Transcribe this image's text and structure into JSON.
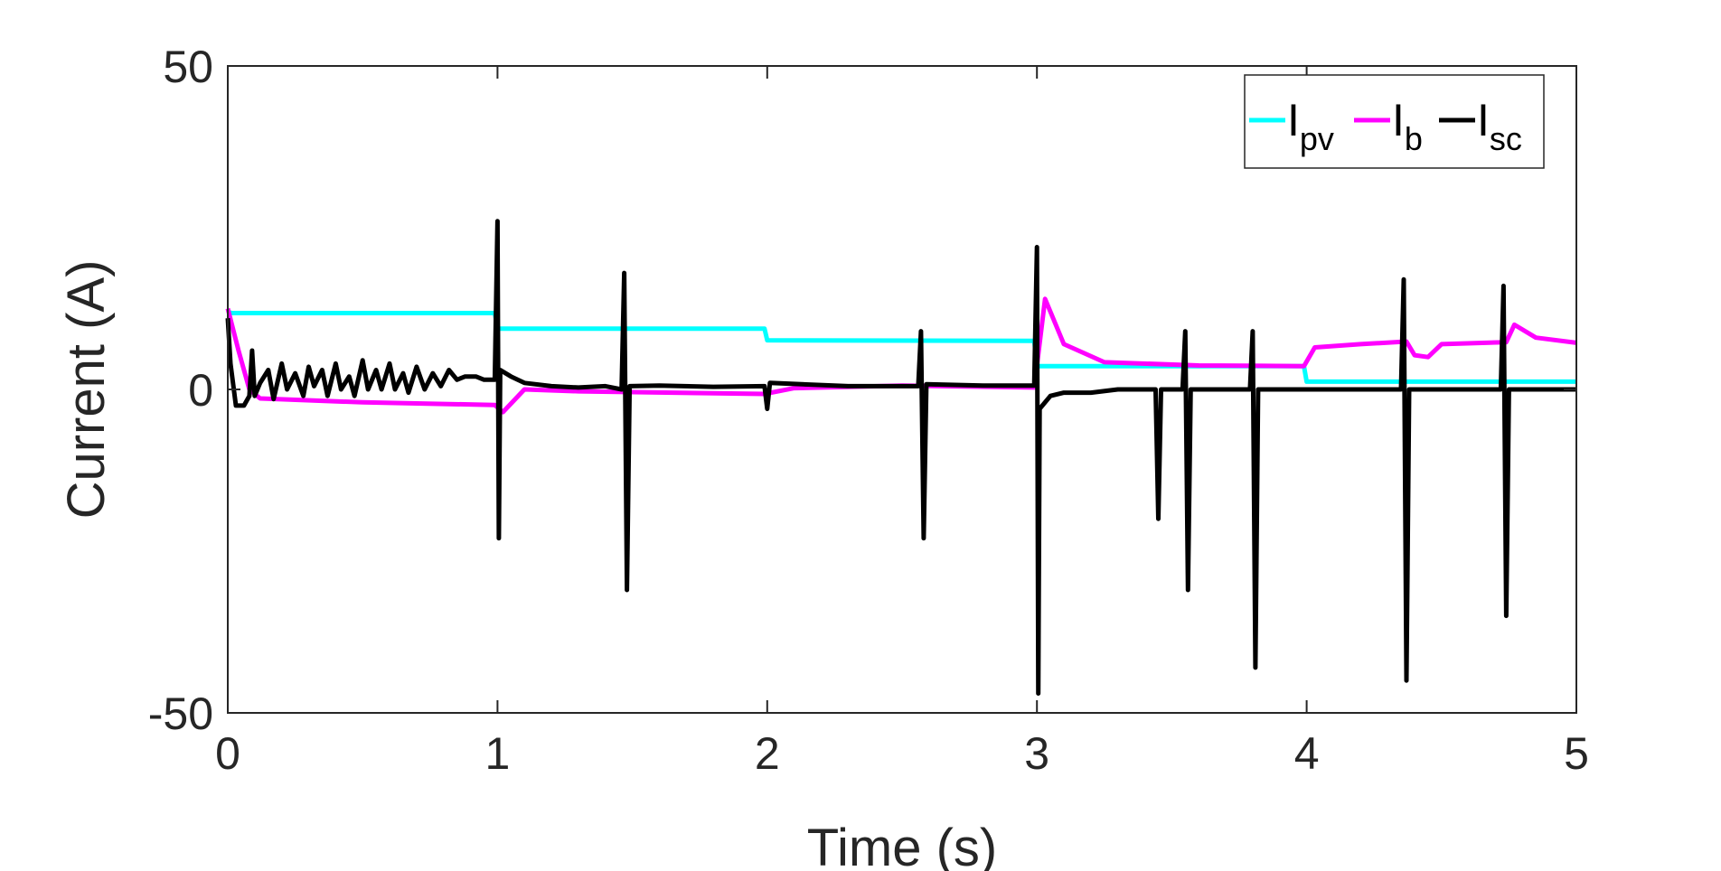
{
  "chart_data": {
    "type": "line",
    "title": "",
    "xlabel": "Time (s)",
    "ylabel": "Current (A)",
    "xlim": [
      0,
      5
    ],
    "ylim": [
      -50,
      50
    ],
    "xticks": [
      0,
      1,
      2,
      3,
      4,
      5
    ],
    "yticks": [
      -50,
      0,
      50
    ],
    "xtick_labels": [
      "0",
      "1",
      "2",
      "3",
      "4",
      "5"
    ],
    "ytick_labels": [
      "-50",
      "0",
      "50"
    ],
    "grid": false,
    "legend_position": "top-right",
    "series": [
      {
        "name": "I",
        "subscript": "pv",
        "color": "#00FFFF",
        "points": [
          [
            0,
            12
          ],
          [
            0.015,
            11.8
          ],
          [
            0.99,
            11.8
          ],
          [
            1.0,
            9.4
          ],
          [
            1.99,
            9.4
          ],
          [
            2.0,
            7.6
          ],
          [
            2.99,
            7.5
          ],
          [
            3.0,
            3.6
          ],
          [
            3.99,
            3.6
          ],
          [
            4.0,
            1.2
          ],
          [
            5.0,
            1.2
          ]
        ]
      },
      {
        "name": "I",
        "subscript": "b",
        "color": "#FF00FF",
        "points": [
          [
            0,
            12.5
          ],
          [
            0.04,
            6
          ],
          [
            0.08,
            0
          ],
          [
            0.12,
            -1.4
          ],
          [
            0.5,
            -2
          ],
          [
            0.99,
            -2.4
          ],
          [
            1.02,
            -3.5
          ],
          [
            1.1,
            0
          ],
          [
            1.3,
            -0.3
          ],
          [
            1.99,
            -0.7
          ],
          [
            2.1,
            0.2
          ],
          [
            2.5,
            0.6
          ],
          [
            2.99,
            0.3
          ],
          [
            3.03,
            14
          ],
          [
            3.1,
            7
          ],
          [
            3.25,
            4.2
          ],
          [
            3.6,
            3.7
          ],
          [
            3.99,
            3.6
          ],
          [
            4.03,
            6.5
          ],
          [
            4.2,
            7
          ],
          [
            4.37,
            7.4
          ],
          [
            4.4,
            5.3
          ],
          [
            4.45,
            5
          ],
          [
            4.5,
            7
          ],
          [
            4.74,
            7.3
          ],
          [
            4.77,
            10
          ],
          [
            4.85,
            8
          ],
          [
            5.0,
            7.2
          ]
        ]
      },
      {
        "name": "I",
        "subscript": "sc",
        "color": "#000000",
        "points": [
          [
            0,
            11
          ],
          [
            0.01,
            4
          ],
          [
            0.03,
            -2.5
          ],
          [
            0.06,
            -2.5
          ],
          [
            0.08,
            -1
          ],
          [
            0.09,
            6
          ],
          [
            0.1,
            -1
          ],
          [
            0.12,
            1
          ],
          [
            0.15,
            3
          ],
          [
            0.17,
            -1.5
          ],
          [
            0.2,
            4
          ],
          [
            0.22,
            0
          ],
          [
            0.25,
            2.5
          ],
          [
            0.28,
            -1
          ],
          [
            0.3,
            3.5
          ],
          [
            0.32,
            0.5
          ],
          [
            0.35,
            3
          ],
          [
            0.37,
            -1
          ],
          [
            0.4,
            4
          ],
          [
            0.42,
            0
          ],
          [
            0.45,
            2
          ],
          [
            0.47,
            -1
          ],
          [
            0.5,
            4.5
          ],
          [
            0.52,
            0
          ],
          [
            0.55,
            3
          ],
          [
            0.57,
            0
          ],
          [
            0.6,
            4
          ],
          [
            0.62,
            0
          ],
          [
            0.65,
            2.5
          ],
          [
            0.67,
            -0.5
          ],
          [
            0.7,
            3.5
          ],
          [
            0.73,
            0
          ],
          [
            0.76,
            2.5
          ],
          [
            0.79,
            0.5
          ],
          [
            0.82,
            3
          ],
          [
            0.85,
            1.5
          ],
          [
            0.88,
            2
          ],
          [
            0.92,
            2
          ],
          [
            0.95,
            1.5
          ],
          [
            0.99,
            1.5
          ],
          [
            1.0,
            26
          ],
          [
            1.005,
            -23
          ],
          [
            1.01,
            3
          ],
          [
            1.05,
            2
          ],
          [
            1.1,
            1
          ],
          [
            1.2,
            0.5
          ],
          [
            1.3,
            0.3
          ],
          [
            1.4,
            0.5
          ],
          [
            1.46,
            0
          ],
          [
            1.47,
            18
          ],
          [
            1.48,
            -31
          ],
          [
            1.49,
            0.5
          ],
          [
            1.6,
            0.6
          ],
          [
            1.8,
            0.4
          ],
          [
            1.99,
            0.5
          ],
          [
            2.0,
            -3
          ],
          [
            2.01,
            1
          ],
          [
            2.3,
            0.5
          ],
          [
            2.56,
            0.5
          ],
          [
            2.57,
            9
          ],
          [
            2.58,
            -23
          ],
          [
            2.59,
            0.8
          ],
          [
            2.8,
            0.6
          ],
          [
            2.99,
            0.6
          ],
          [
            3.0,
            22
          ],
          [
            3.005,
            -47
          ],
          [
            3.01,
            -3
          ],
          [
            3.05,
            -1
          ],
          [
            3.1,
            -0.5
          ],
          [
            3.2,
            -0.5
          ],
          [
            3.3,
            0
          ],
          [
            3.44,
            0
          ],
          [
            3.45,
            -20
          ],
          [
            3.46,
            0
          ],
          [
            3.54,
            0
          ],
          [
            3.55,
            9
          ],
          [
            3.56,
            -31
          ],
          [
            3.57,
            0
          ],
          [
            3.7,
            0
          ],
          [
            3.79,
            0
          ],
          [
            3.8,
            9
          ],
          [
            3.81,
            -43
          ],
          [
            3.82,
            0
          ],
          [
            4.0,
            0
          ],
          [
            4.35,
            0
          ],
          [
            4.36,
            17
          ],
          [
            4.37,
            -45
          ],
          [
            4.38,
            0
          ],
          [
            4.5,
            0
          ],
          [
            4.72,
            0
          ],
          [
            4.73,
            16
          ],
          [
            4.74,
            -35
          ],
          [
            4.75,
            0
          ],
          [
            5.0,
            0
          ]
        ]
      }
    ]
  }
}
